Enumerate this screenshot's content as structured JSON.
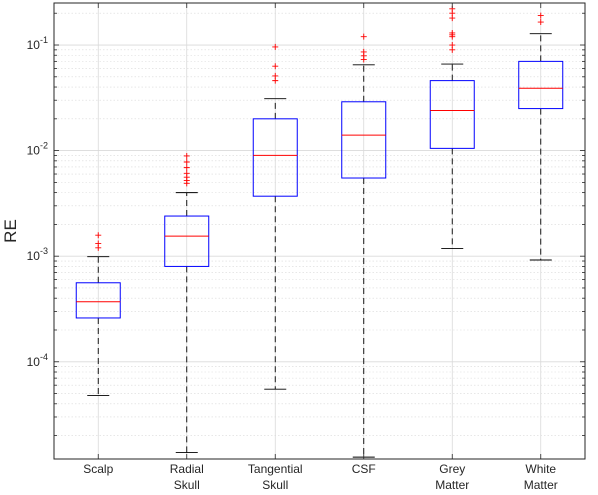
{
  "chart_data": {
    "type": "boxplot",
    "title": "",
    "xlabel": "",
    "ylabel": "RE",
    "yscale": "log",
    "ylim": [
      1.2e-05,
      0.25
    ],
    "grid": true,
    "legend": "none",
    "colors": {
      "box": "#0000ff",
      "median": "#ff0000",
      "whisker": "#000000",
      "outlier": "#ff0000",
      "grid": "#d9d9d9"
    },
    "yticks": [
      {
        "value": 0.0001,
        "base": "10",
        "exp": "-4"
      },
      {
        "value": 0.001,
        "base": "10",
        "exp": "-3"
      },
      {
        "value": 0.01,
        "base": "10",
        "exp": "-2"
      },
      {
        "value": 0.1,
        "base": "10",
        "exp": "-1"
      }
    ],
    "categories": [
      {
        "lines": [
          "Scalp"
        ],
        "whisker_low": 4.8e-05,
        "q1": 0.00026,
        "median": 0.00037,
        "q3": 0.00056,
        "whisker_high": 0.00099,
        "outliers": [
          0.0012,
          0.00132,
          0.00158
        ]
      },
      {
        "lines": [
          "Radial",
          "Skull"
        ],
        "whisker_low": 1.38e-05,
        "q1": 0.0008,
        "median": 0.00155,
        "q3": 0.0024,
        "whisker_high": 0.004,
        "outliers": [
          0.0049,
          0.0052,
          0.0056,
          0.0061,
          0.0069,
          0.0078,
          0.0089
        ]
      },
      {
        "lines": [
          "Tangential",
          "Skull"
        ],
        "whisker_low": 5.5e-05,
        "q1": 0.0037,
        "median": 0.009,
        "q3": 0.02,
        "whisker_high": 0.031,
        "outliers": [
          0.046,
          0.051,
          0.063,
          0.096
        ]
      },
      {
        "lines": [
          "CSF"
        ],
        "whisker_low": 1.25e-05,
        "q1": 0.0055,
        "median": 0.014,
        "q3": 0.029,
        "whisker_high": 0.065,
        "outliers": [
          0.073,
          0.079,
          0.086,
          0.12
        ]
      },
      {
        "lines": [
          "Grey",
          "Matter"
        ],
        "whisker_low": 0.00118,
        "q1": 0.0105,
        "median": 0.024,
        "q3": 0.046,
        "whisker_high": 0.066,
        "outliers": [
          0.09,
          0.1,
          0.12,
          0.125,
          0.13,
          0.18,
          0.2,
          0.22
        ]
      },
      {
        "lines": [
          "White",
          "Matter"
        ],
        "whisker_low": 0.00092,
        "q1": 0.025,
        "median": 0.039,
        "q3": 0.07,
        "whisker_high": 0.128,
        "outliers": [
          0.165,
          0.19
        ]
      }
    ]
  }
}
